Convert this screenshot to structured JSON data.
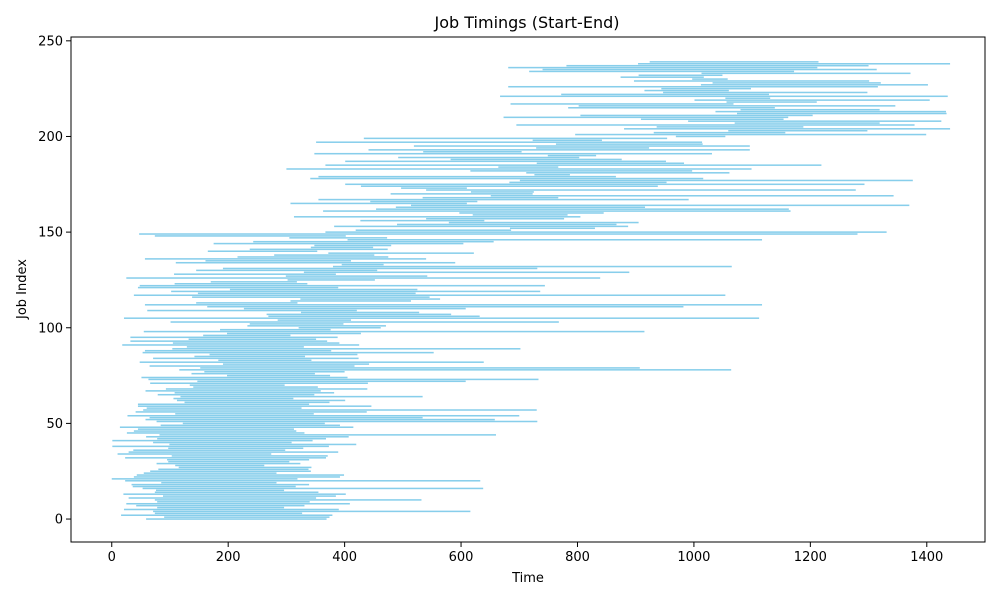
{
  "chart_data": {
    "type": "bar",
    "orientation": "horizontal-intervals",
    "title": "Job Timings (Start-End)",
    "xlabel": "Time",
    "ylabel": "Job Index",
    "xlim": [
      -70,
      1500
    ],
    "ylim": [
      -12,
      252
    ],
    "xticks": [
      0,
      200,
      400,
      600,
      800,
      1000,
      1200,
      1400
    ],
    "yticks": [
      0,
      50,
      100,
      150,
      200,
      250
    ],
    "grid": false,
    "legend": "none",
    "bar_color": "#87ceeb",
    "bands": [
      {
        "y_from": 0,
        "y_to": 25,
        "start_range": [
          0,
          90
        ],
        "end_range": [
          280,
          420
        ],
        "note_end_tail": [
          500,
          700
        ]
      },
      {
        "y_from": 25,
        "y_to": 50,
        "start_range": [
          0,
          120
        ],
        "end_range": [
          260,
          420
        ],
        "note_end_tail": [
          500,
          780
        ]
      },
      {
        "y_from": 50,
        "y_to": 75,
        "start_range": [
          10,
          150
        ],
        "end_range": [
          290,
          450
        ],
        "note_end_tail": [
          500,
          760
        ]
      },
      {
        "y_from": 75,
        "y_to": 100,
        "start_range": [
          10,
          200
        ],
        "end_range": [
          300,
          460
        ],
        "note_end_tail": [
          500,
          1120
        ]
      },
      {
        "y_from": 100,
        "y_to": 125,
        "start_range": [
          20,
          330
        ],
        "end_range": [
          300,
          640
        ],
        "note_end_tail": [
          700,
          1120
        ]
      },
      {
        "y_from": 125,
        "y_to": 150,
        "start_range": [
          20,
          420
        ],
        "end_range": [
          300,
          670
        ],
        "note_end_tail": [
          700,
          1400
        ]
      },
      {
        "y_from": 150,
        "y_to": 175,
        "start_range": [
          300,
          700
        ],
        "end_range": [
          600,
          1000
        ],
        "note_end_tail": [
          1000,
          1440
        ]
      },
      {
        "y_from": 175,
        "y_to": 200,
        "start_range": [
          290,
          780
        ],
        "end_range": [
          700,
          1100
        ],
        "note_end_tail": [
          1100,
          1440
        ]
      },
      {
        "y_from": 200,
        "y_to": 225,
        "start_range": [
          630,
          1110
        ],
        "end_range": [
          960,
          1420
        ],
        "note_end_tail": [
          1420,
          1440
        ]
      },
      {
        "y_from": 225,
        "y_to": 240,
        "start_range": [
          670,
          1100
        ],
        "end_range": [
          1000,
          1440
        ],
        "note_end_tail": [
          1440,
          1440
        ]
      }
    ],
    "job_count": 240,
    "series": []
  }
}
